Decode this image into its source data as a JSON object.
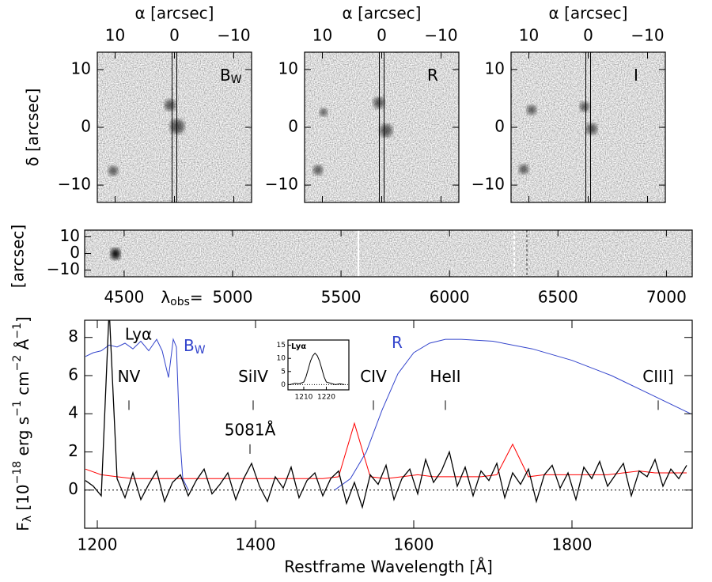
{
  "chart_data": [
    {
      "type": "image",
      "xlabel": "α [arcsec]",
      "ylabel": [
        {
          "text": "δ"
        },
        {
          "text": " [arcsec]"
        }
      ],
      "xlim": [
        13,
        -13
      ],
      "ylim": [
        -13,
        13
      ],
      "xticks": [
        10,
        0,
        {
          "value": -10,
          "label": "−10"
        }
      ],
      "yticks": [
        10,
        0,
        {
          "value": -10,
          "label": "−10"
        }
      ],
      "panels": [
        [
          {
            "text": "B"
          },
          {
            "sub": "W"
          }
        ],
        [
          {
            "text": "R"
          }
        ],
        [
          {
            "text": "I"
          }
        ]
      ]
    },
    {
      "type": "spectrum2d",
      "ylabel": "[arcsec]",
      "ylim": [
        -14,
        14
      ],
      "yticks": [
        10,
        0,
        {
          "value": -10,
          "label": "−10"
        }
      ],
      "xlim": [
        4318,
        7119
      ],
      "xticks": [
        4500,
        5000,
        5500,
        6000,
        6500,
        7000
      ],
      "xlabel": [
        {
          "text": "λ"
        },
        {
          "sub": "obs"
        },
        {
          "text": "="
        }
      ]
    },
    {
      "type": "line",
      "xlabel": "Restframe Wavelength [Å]",
      "ylabel": [
        {
          "text": "F"
        },
        {
          "sub": "λ"
        },
        {
          "text": " [10"
        },
        {
          "sup": "−18"
        },
        {
          "text": " erg s"
        },
        {
          "sup": "−1"
        },
        {
          "text": " cm"
        },
        {
          "sup": "−2"
        },
        {
          "text": " Å"
        },
        {
          "sup": "−1"
        },
        {
          "text": "]"
        }
      ],
      "xlim": [
        1184,
        1952
      ],
      "ylim": [
        -2,
        8.9
      ],
      "xticks": [
        1200,
        1400,
        1600,
        1800
      ],
      "yticks": [
        0,
        2,
        4,
        6,
        8
      ],
      "series": [
        {
          "color": "#ff0000",
          "x": [
            1185,
            1205,
            1225,
            1245,
            1265,
            1285,
            1305,
            1325,
            1345,
            1365,
            1385,
            1405,
            1425,
            1445,
            1465,
            1485,
            1505,
            1525,
            1545,
            1565,
            1585,
            1605,
            1625,
            1645,
            1665,
            1685,
            1705,
            1725,
            1745,
            1765,
            1785,
            1805,
            1825,
            1845,
            1865,
            1885,
            1905,
            1925,
            1945
          ],
          "values": [
            1.1,
            0.8,
            0.7,
            0.6,
            0.6,
            0.6,
            0.6,
            0.6,
            0.6,
            0.6,
            0.6,
            0.6,
            0.6,
            0.6,
            0.6,
            0.6,
            0.7,
            3.5,
            0.7,
            0.6,
            0.7,
            0.8,
            0.7,
            0.7,
            0.7,
            0.7,
            0.8,
            2.4,
            0.7,
            0.8,
            0.8,
            0.8,
            0.8,
            0.8,
            0.9,
            1.0,
            0.9,
            0.9,
            0.9
          ]
        },
        {
          "color": "#3344cc",
          "label": [
            {
              "text": "B"
            },
            {
              "sub": "W"
            }
          ],
          "x": [
            1185,
            1195,
            1205,
            1215,
            1225,
            1235,
            1245,
            1255,
            1265,
            1275,
            1282,
            1290,
            1296,
            1300,
            1304,
            1308,
            1315
          ],
          "values": [
            7.0,
            7.2,
            7.3,
            7.6,
            7.5,
            7.7,
            7.4,
            7.8,
            7.3,
            7.9,
            7.3,
            5.9,
            7.9,
            7.5,
            3.0,
            0.6,
            0
          ]
        },
        {
          "color": "#3344cc",
          "label": [
            {
              "text": "R"
            }
          ],
          "x": [
            1500,
            1520,
            1540,
            1560,
            1580,
            1600,
            1620,
            1640,
            1660,
            1700,
            1750,
            1800,
            1850,
            1900,
            1950
          ],
          "values": [
            0,
            0.6,
            2.0,
            4.2,
            6.1,
            7.2,
            7.7,
            7.9,
            7.9,
            7.8,
            7.4,
            6.8,
            6.0,
            5.0,
            4.0
          ]
        },
        {
          "color": "#000000",
          "x": [
            1185,
            1195,
            1205,
            1215,
            1225,
            1235,
            1245,
            1255,
            1265,
            1275,
            1285,
            1295,
            1305,
            1315,
            1325,
            1335,
            1345,
            1355,
            1365,
            1375,
            1385,
            1395,
            1405,
            1415,
            1425,
            1435,
            1445,
            1455,
            1465,
            1475,
            1485,
            1495,
            1505,
            1515,
            1525,
            1535,
            1545,
            1555,
            1565,
            1575,
            1585,
            1595,
            1605,
            1615,
            1625,
            1635,
            1645,
            1655,
            1665,
            1675,
            1685,
            1695,
            1705,
            1715,
            1725,
            1735,
            1745,
            1755,
            1765,
            1775,
            1785,
            1795,
            1805,
            1815,
            1825,
            1835,
            1845,
            1855,
            1865,
            1875,
            1885,
            1895,
            1905,
            1915,
            1925,
            1935,
            1945
          ],
          "values": [
            0.5,
            0.2,
            -0.3,
            9.5,
            0.6,
            -0.4,
            0.9,
            -0.5,
            0.3,
            1.0,
            -0.6,
            0.4,
            0.8,
            -0.3,
            0.5,
            1.1,
            -0.2,
            0.3,
            0.9,
            -0.5,
            0.6,
            1.4,
            0.2,
            -0.6,
            0.7,
            0.1,
            1.2,
            -0.4,
            0.5,
            0.9,
            -0.3,
            0.6,
            1.0,
            -0.7,
            0.4,
            -0.9,
            0.8,
            0.3,
            1.3,
            -0.5,
            0.6,
            1.1,
            -0.2,
            1.6,
            0.4,
            1.0,
            2.0,
            0.2,
            1.2,
            -0.3,
            1.0,
            0.5,
            1.4,
            -0.4,
            0.9,
            0.3,
            1.1,
            -0.6,
            0.8,
            1.3,
            0.1,
            0.9,
            -0.5,
            1.2,
            0.6,
            1.5,
            0.2,
            0.8,
            1.4,
            -0.3,
            1.0,
            0.7,
            1.6,
            0.2,
            1.1,
            0.6,
            1.3
          ]
        }
      ],
      "annotations": [
        {
          "label": "Lyα",
          "x": 1222
        }
      ],
      "lines": [
        {
          "label": "NV",
          "x": 1240
        },
        {
          "label": "SiIV",
          "x": 1397
        },
        {
          "label": "CIV",
          "x": 1549
        },
        {
          "label": "HeII",
          "x": 1640
        },
        {
          "label": "CIII]",
          "x": 1909
        }
      ],
      "feature": {
        "label": "5081Å",
        "x": 1393
      }
    },
    {
      "type": "inset",
      "title": "Lyα",
      "xlim": [
        1203,
        1230
      ],
      "ylim": [
        -2,
        17
      ],
      "xticks": [
        1210,
        1220
      ],
      "yticks": [
        0,
        5,
        10,
        15
      ],
      "color": "#000000",
      "x": [
        1204,
        1206,
        1208,
        1210,
        1211,
        1212,
        1213,
        1214,
        1215,
        1216,
        1217,
        1218,
        1219,
        1220,
        1222,
        1224,
        1226,
        1228
      ],
      "values": [
        0,
        0.5,
        0.3,
        1,
        3,
        6,
        9,
        11,
        12,
        11,
        9,
        6,
        3,
        1,
        0.5,
        0,
        0.3,
        0
      ]
    }
  ]
}
